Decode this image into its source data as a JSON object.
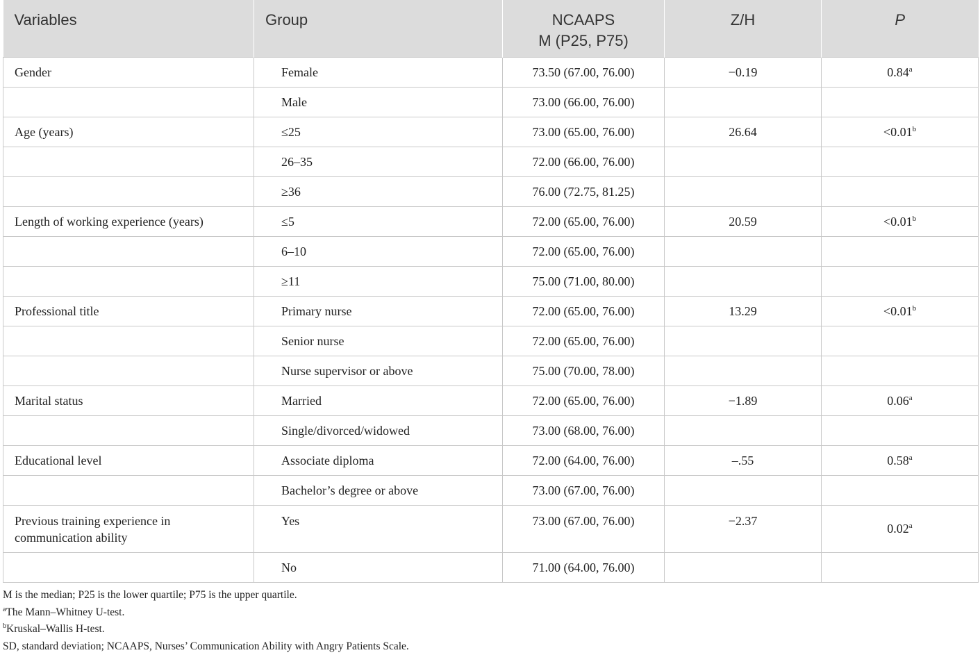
{
  "table": {
    "headers": {
      "variables": "Variables",
      "group": "Group",
      "ncaaps_line1": "NCAAPS",
      "ncaaps_line2": "M (P25, P75)",
      "zh": "Z/H",
      "p": "P"
    },
    "rows": [
      {
        "variable": "Gender",
        "group": "Female",
        "ncaaps": "73.50 (67.00, 76.00)",
        "zh": "−0.19",
        "p": "0.84",
        "p_sup": "a"
      },
      {
        "variable": "",
        "group": "Male",
        "ncaaps": "73.00 (66.00, 76.00)",
        "zh": "",
        "p": "",
        "p_sup": ""
      },
      {
        "variable": "Age (years)",
        "group": "≤25",
        "ncaaps": "73.00 (65.00, 76.00)",
        "zh": "26.64",
        "p": "<0.01",
        "p_sup": "b"
      },
      {
        "variable": "",
        "group": "26–35",
        "ncaaps": "72.00 (66.00, 76.00)",
        "zh": "",
        "p": "",
        "p_sup": ""
      },
      {
        "variable": "",
        "group": "≥36",
        "ncaaps": "76.00 (72.75, 81.25)",
        "zh": "",
        "p": "",
        "p_sup": ""
      },
      {
        "variable": "Length of working experience (years)",
        "group": "≤5",
        "ncaaps": "72.00 (65.00, 76.00)",
        "zh": "20.59",
        "p": "<0.01",
        "p_sup": "b"
      },
      {
        "variable": "",
        "group": "6–10",
        "ncaaps": "72.00 (65.00, 76.00)",
        "zh": "",
        "p": "",
        "p_sup": ""
      },
      {
        "variable": "",
        "group": "≥11",
        "ncaaps": "75.00 (71.00, 80.00)",
        "zh": "",
        "p": "",
        "p_sup": ""
      },
      {
        "variable": "Professional title",
        "group": "Primary nurse",
        "ncaaps": "72.00 (65.00, 76.00)",
        "zh": "13.29",
        "p": "<0.01",
        "p_sup": "b"
      },
      {
        "variable": "",
        "group": "Senior nurse",
        "ncaaps": "72.00 (65.00, 76.00)",
        "zh": "",
        "p": "",
        "p_sup": ""
      },
      {
        "variable": "",
        "group": "Nurse supervisor or above",
        "ncaaps": "75.00 (70.00, 78.00)",
        "zh": "",
        "p": "",
        "p_sup": ""
      },
      {
        "variable": "Marital status",
        "group": "Married",
        "ncaaps": "72.00 (65.00, 76.00)",
        "zh": "−1.89",
        "p": "0.06",
        "p_sup": "a"
      },
      {
        "variable": "",
        "group": "Single/divorced/widowed",
        "ncaaps": "73.00 (68.00, 76.00)",
        "zh": "",
        "p": "",
        "p_sup": ""
      },
      {
        "variable": "Educational level",
        "group": "Associate diploma",
        "ncaaps": "72.00 (64.00, 76.00)",
        "zh": "–.55",
        "p": "0.58",
        "p_sup": "a"
      },
      {
        "variable": "",
        "group": "Bachelor’s degree or above",
        "ncaaps": "73.00 (67.00, 76.00)",
        "zh": "",
        "p": "",
        "p_sup": ""
      },
      {
        "variable": "Previous training experience in communication ability",
        "group": "Yes",
        "ncaaps": "73.00 (67.00, 76.00)",
        "zh": "−2.37",
        "p": "0.02",
        "p_sup": "a"
      },
      {
        "variable": "",
        "group": "No",
        "ncaaps": "71.00 (64.00, 76.00)",
        "zh": "",
        "p": "",
        "p_sup": ""
      }
    ]
  },
  "notes": {
    "line1": "M is the median; P25 is the lower quartile; P75 is the upper quartile.",
    "line2_sup": "a",
    "line2": "The Mann–Whitney U-test.",
    "line3_sup": "b",
    "line3": "Kruskal–Wallis H-test.",
    "line4": "SD, standard deviation; NCAAPS, Nurses’ Communication Ability with Angry Patients Scale."
  }
}
